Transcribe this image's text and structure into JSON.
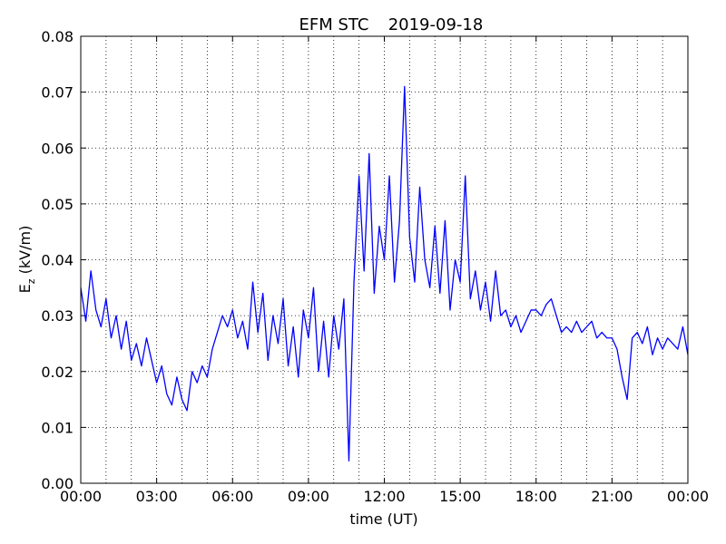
{
  "chart_data": {
    "type": "line",
    "title": "EFM STC",
    "subtitle": "2019-09-18",
    "xlabel": "time (UT)",
    "ylabel": {
      "main": "E",
      "sub": "z",
      "rest": " (kV/m)"
    },
    "x": [
      0,
      0.2,
      0.4,
      0.6,
      0.8,
      1,
      1.2,
      1.4,
      1.6,
      1.8,
      2,
      2.2,
      2.4,
      2.6,
      2.8,
      3,
      3.2,
      3.4,
      3.6,
      3.8,
      4,
      4.2,
      4.4,
      4.6,
      4.8,
      5,
      5.2,
      5.4,
      5.6,
      5.8,
      6,
      6.2,
      6.4,
      6.6,
      6.8,
      7,
      7.2,
      7.4,
      7.6,
      7.8,
      8,
      8.2,
      8.4,
      8.6,
      8.8,
      9,
      9.2,
      9.4,
      9.6,
      9.8,
      10,
      10.2,
      10.4,
      10.6,
      10.8,
      11,
      11.2,
      11.4,
      11.6,
      11.8,
      12,
      12.2,
      12.4,
      12.6,
      12.8,
      13,
      13.2,
      13.4,
      13.6,
      13.8,
      14,
      14.2,
      14.4,
      14.6,
      14.8,
      15,
      15.2,
      15.4,
      15.6,
      15.8,
      16,
      16.2,
      16.4,
      16.6,
      16.8,
      17,
      17.2,
      17.4,
      17.6,
      17.8,
      18,
      18.2,
      18.4,
      18.6,
      18.8,
      19,
      19.2,
      19.4,
      19.6,
      19.8,
      20,
      20.2,
      20.4,
      20.6,
      20.8,
      21,
      21.2,
      21.4,
      21.6,
      21.8,
      22,
      22.2,
      22.4,
      22.6,
      22.8,
      23,
      23.2,
      23.4,
      23.6,
      23.8,
      24
    ],
    "series": [
      {
        "name": "Ez",
        "color": "#0000ff",
        "values": [
          0.035,
          0.029,
          0.038,
          0.031,
          0.028,
          0.033,
          0.026,
          0.03,
          0.024,
          0.029,
          0.022,
          0.025,
          0.021,
          0.026,
          0.022,
          0.018,
          0.021,
          0.016,
          0.014,
          0.019,
          0.015,
          0.013,
          0.02,
          0.018,
          0.021,
          0.019,
          0.024,
          0.027,
          0.03,
          0.028,
          0.031,
          0.026,
          0.029,
          0.024,
          0.036,
          0.027,
          0.034,
          0.022,
          0.03,
          0.025,
          0.033,
          0.021,
          0.028,
          0.019,
          0.031,
          0.026,
          0.035,
          0.02,
          0.029,
          0.019,
          0.03,
          0.024,
          0.033,
          0.004,
          0.036,
          0.055,
          0.038,
          0.059,
          0.034,
          0.046,
          0.04,
          0.055,
          0.036,
          0.047,
          0.071,
          0.044,
          0.036,
          0.053,
          0.04,
          0.035,
          0.046,
          0.034,
          0.047,
          0.031,
          0.04,
          0.036,
          0.055,
          0.033,
          0.038,
          0.031,
          0.036,
          0.029,
          0.038,
          0.03,
          0.031,
          0.028,
          0.03,
          0.027,
          0.029,
          0.031,
          0.031,
          0.03,
          0.032,
          0.033,
          0.03,
          0.027,
          0.028,
          0.027,
          0.029,
          0.027,
          0.028,
          0.029,
          0.026,
          0.027,
          0.026,
          0.026,
          0.024,
          0.019,
          0.015,
          0.026,
          0.027,
          0.025,
          0.028,
          0.023,
          0.026,
          0.024,
          0.026,
          0.025,
          0.024,
          0.028,
          0.023
        ]
      }
    ],
    "xlim": [
      0,
      24
    ],
    "xticks": [
      {
        "value": 0,
        "label": "00:00"
      },
      {
        "value": 3,
        "label": "03:00"
      },
      {
        "value": 6,
        "label": "06:00"
      },
      {
        "value": 9,
        "label": "09:00"
      },
      {
        "value": 12,
        "label": "12:00"
      },
      {
        "value": 15,
        "label": "15:00"
      },
      {
        "value": 18,
        "label": "18:00"
      },
      {
        "value": 21,
        "label": "21:00"
      },
      {
        "value": 24,
        "label": "00:00"
      }
    ],
    "xminorticks": [
      1,
      2,
      4,
      5,
      7,
      8,
      10,
      11,
      13,
      14,
      16,
      17,
      19,
      20,
      22,
      23
    ],
    "ylim": [
      0,
      0.08
    ],
    "yticks": [
      {
        "value": 0,
        "label": "0.00"
      },
      {
        "value": 0.01,
        "label": "0.01"
      },
      {
        "value": 0.02,
        "label": "0.02"
      },
      {
        "value": 0.03,
        "label": "0.03"
      },
      {
        "value": 0.04,
        "label": "0.04"
      },
      {
        "value": 0.05,
        "label": "0.05"
      },
      {
        "value": 0.06,
        "label": "0.06"
      },
      {
        "value": 0.07,
        "label": "0.07"
      },
      {
        "value": 0.08,
        "label": "0.08"
      }
    ],
    "grid": true
  }
}
